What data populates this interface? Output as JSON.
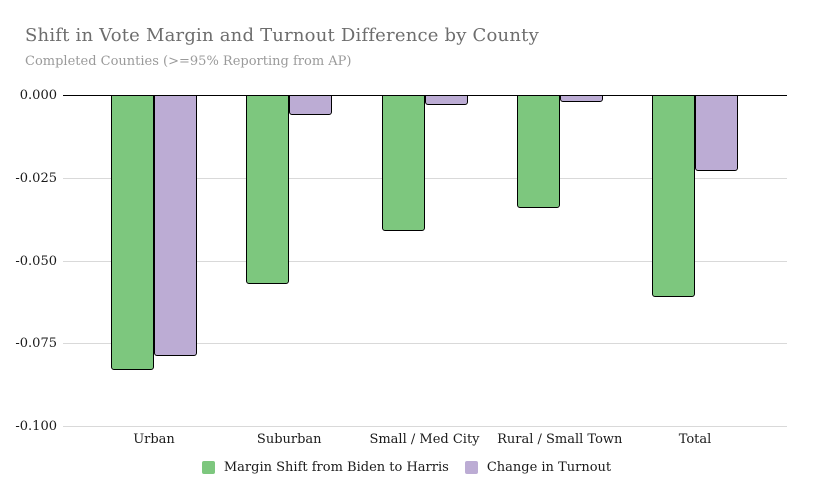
{
  "header": {
    "title": "Shift in Vote Margin and Turnout Difference by County",
    "subtitle": "Completed Counties (>=95% Reporting from AP)"
  },
  "colors": {
    "green": "#7dc77e",
    "purple": "#bcacd4",
    "grid": "#d9d9d9",
    "zero_line": "#000000",
    "title_text": "#6d6d6d",
    "subtitle_text": "#9a9a9a",
    "axis_text": "#1a1a1a",
    "bar_border": "#000000",
    "background": "#ffffff"
  },
  "chart_data": {
    "type": "bar",
    "title": "Shift in Vote Margin and Turnout Difference by County",
    "subtitle": "Completed Counties (>=95% Reporting from AP)",
    "categories": [
      "Urban",
      "Suburban",
      "Small / Med City",
      "Rural / Small Town",
      "Total"
    ],
    "series": [
      {
        "name": "Margin Shift from Biden to Harris",
        "key": "margin-shift",
        "color": "#7dc77e",
        "values": [
          -0.083,
          -0.057,
          -0.041,
          -0.034,
          -0.061
        ]
      },
      {
        "name": "Change in Turnout",
        "key": "turnout",
        "color": "#bcacd4",
        "values": [
          -0.079,
          -0.006,
          -0.003,
          -0.002,
          -0.023
        ]
      }
    ],
    "xlabel": "",
    "ylabel": "",
    "ylim": [
      -0.1,
      0.0
    ],
    "yticks": [
      {
        "value": 0.0,
        "label": "0.000"
      },
      {
        "value": -0.025,
        "label": "-0.025"
      },
      {
        "value": -0.05,
        "label": "-0.050"
      },
      {
        "value": -0.075,
        "label": "-0.075"
      },
      {
        "value": -0.1,
        "label": "-0.100"
      }
    ],
    "grid": true,
    "legend_position": "bottom"
  }
}
